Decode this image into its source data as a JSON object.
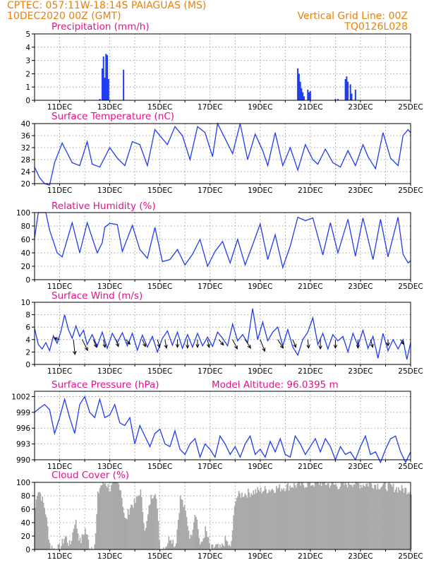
{
  "header": {
    "line1": "CPTEC:   057:11W-18:14S   PAIAGUAS (MS)",
    "line2": "10DEC2020 00Z (GMT)",
    "vgrid": "Vertical Grid Line: 00Z",
    "code": "TQ0126L028"
  },
  "colors": {
    "header": "#e8800a",
    "title": "#e8108a",
    "line": "#1f3cf0",
    "cloud": "#a9a9a9",
    "arrow": "#000000"
  },
  "chart_data": [
    {
      "id": "precip",
      "type": "bar",
      "title": "Precipitation (mm/h)",
      "ylim": [
        0,
        5
      ],
      "yticks": [
        0,
        1,
        2,
        3,
        4,
        5
      ],
      "xticks": [
        "11DEC",
        "13DEC",
        "15DEC",
        "17DEC",
        "19DEC",
        "21DEC",
        "23DEC",
        "25DEC"
      ],
      "grid": true,
      "x": [
        2.6,
        2.7,
        2.75,
        2.8,
        2.85,
        2.9,
        2.95,
        3.55,
        10.5,
        10.55,
        10.6,
        10.65,
        10.7,
        10.75,
        10.9,
        10.95,
        11.0,
        12.0,
        12.1,
        12.4,
        12.45,
        12.5,
        12.6,
        12.65,
        12.8
      ],
      "values": [
        0.1,
        2.4,
        3.3,
        1.7,
        3.5,
        3.4,
        1.6,
        2.3,
        2.4,
        2.0,
        1.4,
        0.9,
        0.6,
        0.3,
        0.8,
        0.6,
        0.7,
        0.1,
        0.1,
        1.6,
        1.8,
        1.4,
        1.2,
        0.5,
        0.8
      ]
    },
    {
      "id": "temp",
      "type": "line",
      "title": "Surface Temperature (nC)",
      "ylim": [
        20,
        40
      ],
      "yticks": [
        20,
        24,
        28,
        32,
        36,
        40
      ],
      "xticks": [
        "11DEC",
        "13DEC",
        "15DEC",
        "17DEC",
        "19DEC",
        "21DEC",
        "23DEC",
        "25DEC"
      ],
      "grid": true,
      "x": [
        0,
        0.2,
        0.4,
        0.6,
        0.8,
        1.1,
        1.5,
        1.8,
        2.1,
        2.3,
        2.6,
        3.0,
        3.3,
        3.6,
        3.9,
        4.2,
        4.5,
        4.8,
        5.1,
        5.3,
        5.6,
        5.9,
        6.2,
        6.5,
        6.8,
        7.1,
        7.3,
        7.6,
        7.9,
        8.2,
        8.5,
        8.8,
        9.1,
        9.3,
        9.6,
        9.9,
        10.2,
        10.5,
        10.8,
        11.1,
        11.3,
        11.6,
        11.9,
        12.2,
        12.5,
        12.8,
        13.1,
        13.3,
        13.6,
        13.9,
        14.2,
        14.5,
        14.7,
        14.9,
        15.0
      ],
      "values": [
        25.5,
        22,
        20,
        19.5,
        27,
        33.5,
        27,
        26,
        34,
        26.5,
        25.5,
        32,
        28.5,
        26,
        34,
        33,
        26,
        38,
        35,
        33,
        39,
        36,
        28,
        39,
        37,
        29,
        40,
        35,
        30,
        40,
        28,
        36.5,
        31,
        26,
        37,
        26,
        32,
        24.5,
        33,
        28,
        26.5,
        31.5,
        27,
        25.5,
        31,
        26,
        33,
        29,
        25,
        37,
        28.5,
        26,
        36,
        38,
        37
      ]
    },
    {
      "id": "rh",
      "type": "line",
      "title": "Relative Humidity (%)",
      "ylim": [
        0,
        100
      ],
      "yticks": [
        0,
        20,
        40,
        60,
        80,
        100
      ],
      "xticks": [
        "11DEC",
        "13DEC",
        "15DEC",
        "17DEC",
        "19DEC",
        "21DEC",
        "23DEC",
        "25DEC"
      ],
      "grid": true,
      "x": [
        0,
        0.15,
        0.3,
        0.45,
        0.6,
        0.9,
        1.1,
        1.5,
        1.8,
        2.1,
        2.5,
        2.7,
        2.8,
        3.0,
        3.3,
        3.5,
        3.9,
        4.2,
        4.5,
        4.8,
        5.1,
        5.4,
        5.7,
        6.0,
        6.3,
        6.6,
        6.9,
        7.2,
        7.5,
        7.8,
        8.1,
        8.4,
        8.7,
        9.0,
        9.3,
        9.6,
        9.9,
        10.2,
        10.5,
        10.8,
        11.1,
        11.5,
        11.8,
        12.1,
        12.5,
        12.8,
        13.1,
        13.5,
        13.8,
        14.1,
        14.5,
        14.7,
        14.9,
        15.0
      ],
      "values": [
        62,
        100,
        100,
        100,
        74,
        40,
        34,
        85,
        40,
        85,
        40,
        55,
        78,
        84,
        82,
        42,
        81,
        45,
        32,
        78,
        27,
        30,
        45,
        22,
        38,
        60,
        20,
        42,
        57,
        25,
        60,
        22,
        52,
        83,
        30,
        67,
        18,
        50,
        93,
        88,
        92,
        37,
        85,
        40,
        90,
        35,
        92,
        30,
        90,
        34,
        93,
        38,
        25,
        28
      ]
    },
    {
      "id": "wind",
      "type": "line",
      "title": "Surface Wind (m/s)",
      "ylim": [
        0,
        10
      ],
      "yticks": [
        0,
        2,
        4,
        6,
        8,
        10
      ],
      "xticks": [
        "11DEC",
        "13DEC",
        "15DEC",
        "17DEC",
        "19DEC",
        "21DEC",
        "23DEC",
        "25DEC"
      ],
      "grid": true,
      "x": [
        0,
        0.15,
        0.3,
        0.45,
        0.6,
        0.75,
        0.9,
        1.05,
        1.2,
        1.35,
        1.5,
        1.65,
        1.8,
        1.95,
        2.1,
        2.3,
        2.5,
        2.7,
        2.9,
        3.1,
        3.3,
        3.5,
        3.7,
        3.9,
        4.1,
        4.3,
        4.5,
        4.7,
        4.9,
        5.1,
        5.3,
        5.5,
        5.7,
        5.9,
        6.1,
        6.3,
        6.5,
        6.7,
        6.9,
        7.1,
        7.3,
        7.5,
        7.7,
        7.9,
        8.1,
        8.3,
        8.5,
        8.7,
        8.9,
        9.1,
        9.3,
        9.5,
        9.7,
        9.9,
        10.1,
        10.3,
        10.5,
        10.7,
        10.9,
        11.1,
        11.3,
        11.5,
        11.7,
        11.9,
        12.1,
        12.3,
        12.5,
        12.7,
        12.9,
        13.1,
        13.3,
        13.5,
        13.7,
        13.9,
        14.1,
        14.3,
        14.5,
        14.7,
        14.85,
        15.0
      ],
      "values": [
        5.8,
        3.2,
        2.5,
        3.5,
        2.2,
        4.6,
        3.4,
        5.3,
        8.0,
        5.6,
        4.2,
        6.2,
        4.5,
        5.5,
        3.2,
        4.8,
        2.9,
        5.2,
        2.6,
        5.0,
        3.5,
        5.1,
        3.0,
        5.0,
        2.3,
        4.7,
        2.8,
        4.5,
        2.0,
        4.2,
        5.4,
        3.1,
        5.2,
        2.6,
        4.8,
        2.8,
        5.0,
        3.0,
        4.4,
        2.9,
        5.2,
        4.2,
        3.0,
        6.5,
        3.8,
        4.8,
        3.5,
        9.0,
        4.0,
        6.8,
        3.8,
        5.2,
        6.0,
        3.0,
        5.6,
        2.8,
        1.5,
        4.0,
        5.2,
        7.5,
        3.2,
        5.0,
        2.5,
        4.8,
        3.8,
        4.5,
        2.0,
        5.0,
        3.0,
        5.5,
        2.6,
        4.5,
        1.0,
        5.0,
        2.2,
        4.0,
        2.5,
        4.0,
        0.8,
        3.5
      ],
      "vectors": [
        {
          "x": 1.0,
          "dx": -0.35,
          "dy": 0.1
        },
        {
          "x": 1.55,
          "dx": 0.1,
          "dy": -0.95
        },
        {
          "x": 1.9,
          "dx": 0.35,
          "dy": -0.7
        },
        {
          "x": 2.35,
          "dx": 0.2,
          "dy": -0.5
        },
        {
          "x": 2.75,
          "dx": 0.1,
          "dy": -0.5
        },
        {
          "x": 3.25,
          "dx": 0.15,
          "dy": -0.45
        },
        {
          "x": 3.65,
          "dx": 0.25,
          "dy": -0.3
        },
        {
          "x": 4.3,
          "dx": 0.2,
          "dy": -0.45
        },
        {
          "x": 4.9,
          "dx": 0.15,
          "dy": -0.5
        },
        {
          "x": 5.2,
          "dx": 0.1,
          "dy": -0.55
        },
        {
          "x": 5.7,
          "dx": 0.0,
          "dy": -0.5
        },
        {
          "x": 6.1,
          "dx": 0.0,
          "dy": -0.55
        },
        {
          "x": 6.5,
          "dx": 0.0,
          "dy": -0.5
        },
        {
          "x": 6.9,
          "dx": 0.1,
          "dy": -0.5
        },
        {
          "x": 7.35,
          "dx": 0.3,
          "dy": -0.35
        },
        {
          "x": 7.9,
          "dx": 0.3,
          "dy": -0.6
        },
        {
          "x": 8.4,
          "dx": 0.35,
          "dy": -0.55
        },
        {
          "x": 9.0,
          "dx": 0.3,
          "dy": -0.75
        },
        {
          "x": 9.7,
          "dx": 0.35,
          "dy": -0.55
        },
        {
          "x": 10.3,
          "dx": 0.2,
          "dy": -0.5
        },
        {
          "x": 10.9,
          "dx": 0.05,
          "dy": -0.55
        },
        {
          "x": 11.4,
          "dx": 0.0,
          "dy": -0.6
        },
        {
          "x": 12.0,
          "dx": 0.0,
          "dy": -0.55
        },
        {
          "x": 12.9,
          "dx": 0.0,
          "dy": -0.55
        },
        {
          "x": 13.4,
          "dx": 0.15,
          "dy": -0.5
        },
        {
          "x": 14.1,
          "dx": 0.0,
          "dy": -0.4
        },
        {
          "x": 14.6,
          "dx": 0.2,
          "dy": -0.3
        }
      ]
    },
    {
      "id": "pressure",
      "type": "line",
      "title": "Surface Pressure (hPa)",
      "subtitle": "Model Altitude: 96.0395 m",
      "ylim": [
        990,
        1003
      ],
      "yticks": [
        990,
        993,
        996,
        999,
        1002
      ],
      "xticks": [
        "11DEC",
        "13DEC",
        "15DEC",
        "17DEC",
        "19DEC",
        "21DEC",
        "23DEC",
        "25DEC"
      ],
      "grid": true,
      "x": [
        0,
        0.2,
        0.4,
        0.6,
        0.8,
        1.0,
        1.2,
        1.4,
        1.6,
        1.8,
        2.0,
        2.2,
        2.4,
        2.6,
        2.8,
        3.0,
        3.2,
        3.4,
        3.6,
        3.8,
        4.0,
        4.2,
        4.4,
        4.6,
        4.8,
        5.0,
        5.2,
        5.4,
        5.6,
        5.8,
        6.0,
        6.2,
        6.4,
        6.6,
        6.8,
        7.0,
        7.2,
        7.4,
        7.6,
        7.8,
        8.0,
        8.2,
        8.4,
        8.6,
        8.8,
        9.0,
        9.2,
        9.4,
        9.6,
        9.8,
        10.0,
        10.2,
        10.4,
        10.6,
        10.8,
        11.0,
        11.2,
        11.4,
        11.6,
        11.8,
        12.0,
        12.2,
        12.4,
        12.6,
        12.8,
        13.0,
        13.2,
        13.4,
        13.6,
        13.8,
        14.0,
        14.2,
        14.4,
        14.6,
        14.8,
        15.0
      ],
      "values": [
        999,
        999.8,
        1000.5,
        999.5,
        995,
        998,
        1001.5,
        998,
        995,
        1000.5,
        1002,
        999,
        998,
        1001.5,
        998,
        998.5,
        1000.5,
        997,
        996.5,
        998,
        993,
        996.5,
        994.5,
        992.5,
        995,
        995.8,
        993,
        992.5,
        995.5,
        992,
        991,
        993,
        994,
        990.5,
        993,
        992,
        990.5,
        994.5,
        993,
        991,
        992.5,
        990.5,
        993,
        994.5,
        991,
        992,
        990.5,
        993.5,
        991.5,
        994,
        991,
        990.5,
        994.5,
        993,
        991,
        992.5,
        994,
        991.5,
        994,
        992.5,
        990,
        992.5,
        991,
        991.5,
        990,
        992.5,
        994.5,
        991,
        991.5,
        989.5,
        992,
        994,
        994.5,
        991.5,
        989.5,
        991.5
      ]
    },
    {
      "id": "cloud",
      "type": "bar",
      "title": "Cloud Cover (%)",
      "ylim": [
        0,
        100
      ],
      "yticks": [
        0,
        20,
        40,
        60,
        80,
        100
      ],
      "xticks": [
        "11DEC",
        "13DEC",
        "15DEC",
        "17DEC",
        "19DEC",
        "21DEC",
        "23DEC",
        "25DEC"
      ],
      "grid": true,
      "profile_x": [
        0,
        0.1,
        0.2,
        0.4,
        0.6,
        0.8,
        1.0,
        1.2,
        1.4,
        1.6,
        1.8,
        2.0,
        2.2,
        2.4,
        2.5,
        2.6,
        2.8,
        3.0,
        3.2,
        3.4,
        3.6,
        3.8,
        4.0,
        4.2,
        4.4,
        4.6,
        4.8,
        5.0,
        5.2,
        5.4,
        5.6,
        5.8,
        6.0,
        6.2,
        6.4,
        6.6,
        6.8,
        7.0,
        7.2,
        7.4,
        7.6,
        7.8,
        8.0,
        8.2,
        8.6,
        9.0,
        9.4,
        9.8,
        10.2,
        10.6,
        11.0,
        11.4,
        11.8,
        12.2,
        12.6,
        13.0,
        13.4,
        13.8,
        14.2,
        14.6,
        15.0
      ],
      "profile_y": [
        62,
        90,
        85,
        60,
        5,
        0,
        2,
        20,
        5,
        45,
        10,
        30,
        2,
        10,
        80,
        95,
        100,
        90,
        100,
        95,
        40,
        65,
        70,
        88,
        25,
        75,
        90,
        0,
        5,
        20,
        5,
        80,
        55,
        15,
        60,
        2,
        30,
        0,
        5,
        0,
        15,
        0,
        78,
        82,
        85,
        88,
        90,
        92,
        95,
        97,
        98,
        100,
        97,
        95,
        100,
        97,
        98,
        95,
        93,
        90,
        88
      ]
    }
  ]
}
